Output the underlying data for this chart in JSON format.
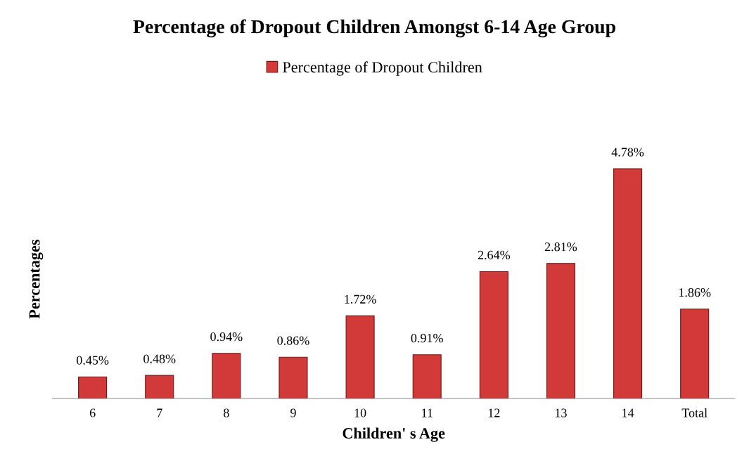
{
  "chart_data": {
    "type": "bar",
    "title": "Percentage of Dropout Children Amongst 6-14 Age Group",
    "xlabel": "Children' s Age",
    "ylabel": "Percentages",
    "categories": [
      "6",
      "7",
      "8",
      "9",
      "10",
      "11",
      "12",
      "13",
      "14",
      "Total"
    ],
    "series": [
      {
        "name": "Percentage of Dropout Children",
        "color": "#d23a3a",
        "values": [
          0.45,
          0.48,
          0.94,
          0.86,
          1.72,
          0.91,
          2.64,
          2.81,
          4.78,
          1.86
        ],
        "value_labels": [
          "0.45%",
          "0.48%",
          "0.94%",
          "0.86%",
          "1.72%",
          "0.91%",
          "2.64%",
          "2.81%",
          "4.78%",
          "1.86%"
        ]
      }
    ],
    "legend": "top",
    "grid": false
  }
}
